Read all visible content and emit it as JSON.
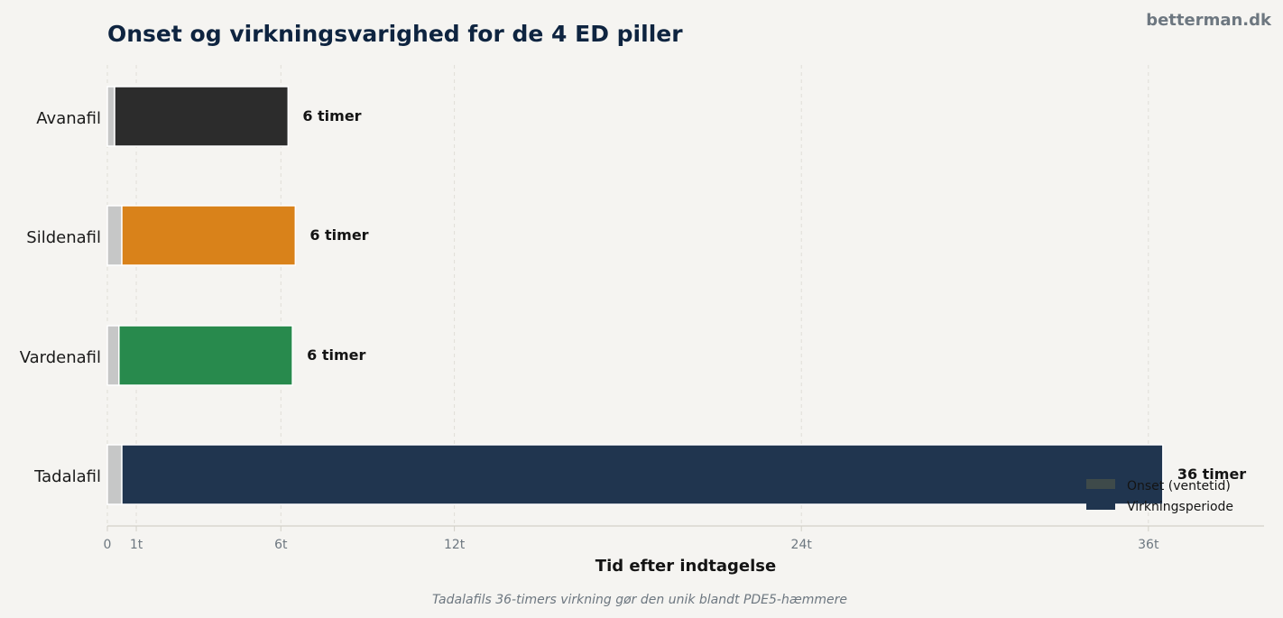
{
  "brand": "betterman.dk",
  "caption": "Tadalafils 36-timers virkning gør den unik blandt PDE5-hæmmere",
  "colors": {
    "background": "#f5f4f1",
    "onset": "#c6c7c7",
    "title": "#0e2440",
    "legend_onset": "#3e4a4a"
  },
  "chart_data": {
    "type": "bar",
    "orientation": "horizontal",
    "stacked": true,
    "title": "Onset og virkningsvarighed for de 4 ED piller",
    "xlabel": "Tid efter indtagelse",
    "ylabel": "",
    "xlim": [
      0,
      40
    ],
    "x_ticks": [
      {
        "value": 0,
        "label": "0"
      },
      {
        "value": 1,
        "label": "1t"
      },
      {
        "value": 6,
        "label": "6t"
      },
      {
        "value": 12,
        "label": "12t"
      },
      {
        "value": 24,
        "label": "24t"
      },
      {
        "value": 36,
        "label": "36t"
      }
    ],
    "grid": "vertical dashed",
    "legend_position": "bottom-right",
    "categories": [
      "Avanafil",
      "Sildenafil",
      "Vardenafil",
      "Tadalafil"
    ],
    "series": [
      {
        "name": "Onset (ventetid)",
        "values": [
          0.25,
          0.5,
          0.4,
          0.5
        ]
      },
      {
        "name": "Virkningsperiode",
        "values": [
          6,
          6,
          6,
          36
        ]
      }
    ],
    "bar_colors": [
      "#2c2c2c",
      "#d9821a",
      "#288a4d",
      "#20354f"
    ],
    "data_labels": [
      "6 timer",
      "6 timer",
      "6 timer",
      "36 timer"
    ]
  }
}
